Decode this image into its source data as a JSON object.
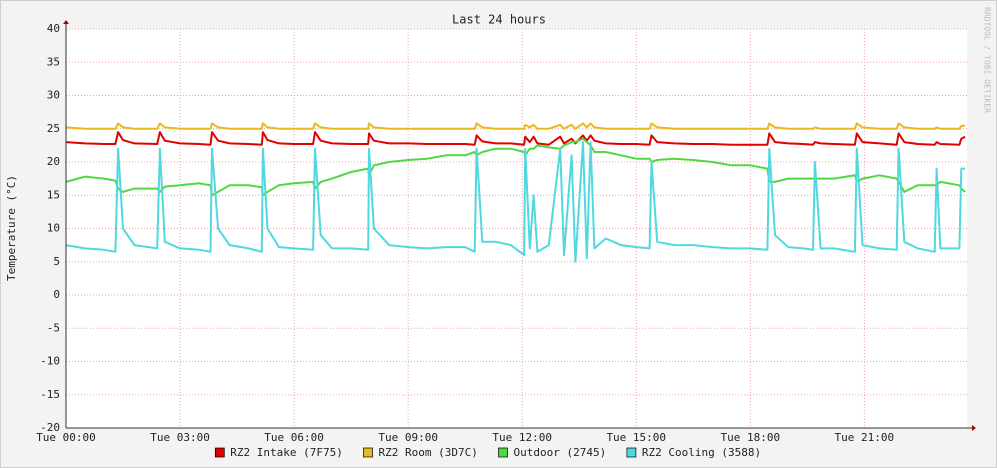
{
  "chart_data": {
    "type": "line",
    "title": "Last 24 hours",
    "y_label": "Temperature (°C)",
    "watermark": "RRDTOOL / TOBI OETIKER",
    "x": [
      0,
      0.5,
      1.0,
      1.3,
      1.37,
      1.5,
      1.8,
      2.4,
      2.47,
      2.6,
      3.0,
      3.5,
      3.8,
      3.84,
      4.0,
      4.3,
      4.8,
      5.15,
      5.18,
      5.3,
      5.6,
      6.0,
      6.5,
      6.55,
      6.7,
      7.0,
      7.5,
      7.95,
      7.97,
      8.1,
      8.5,
      9.0,
      9.5,
      10.0,
      10.5,
      10.75,
      10.8,
      10.95,
      11.3,
      11.7,
      12.05,
      12.08,
      12.2,
      12.3,
      12.4,
      12.7,
      13.0,
      13.1,
      13.3,
      13.4,
      13.6,
      13.7,
      13.8,
      13.9,
      14.2,
      14.6,
      15.0,
      15.35,
      15.4,
      15.55,
      16.0,
      16.5,
      17.0,
      17.5,
      18.0,
      18.45,
      18.5,
      18.65,
      19.0,
      19.4,
      19.65,
      19.7,
      19.85,
      20.2,
      20.75,
      20.8,
      20.95,
      21.4,
      21.85,
      21.9,
      22.05,
      22.4,
      22.85,
      22.9,
      23.0,
      23.5,
      23.55,
      23.65
    ],
    "series": [
      {
        "name": "RZ2 Intake (7F75)",
        "color": "#e00000",
        "values": [
          23,
          22.8,
          22.7,
          22.7,
          24.5,
          23.3,
          22.8,
          22.7,
          24.5,
          23.2,
          22.8,
          22.7,
          22.6,
          24.5,
          23.2,
          22.8,
          22.7,
          22.6,
          24.5,
          23.3,
          22.8,
          22.7,
          22.7,
          24.5,
          23.2,
          22.8,
          22.7,
          22.7,
          24.3,
          23.2,
          22.8,
          22.8,
          22.7,
          22.7,
          22.7,
          22.6,
          24,
          23.1,
          22.8,
          22.8,
          22.6,
          23.8,
          23,
          23.8,
          22.8,
          22.6,
          23.8,
          22.8,
          23.5,
          22.8,
          24,
          23.2,
          24,
          23.2,
          22.8,
          22.7,
          22.7,
          22.6,
          24,
          23,
          22.8,
          22.7,
          22.7,
          22.6,
          22.6,
          22.6,
          24.3,
          23,
          22.8,
          22.7,
          22.6,
          23,
          22.8,
          22.7,
          22.6,
          24.3,
          23,
          22.8,
          22.6,
          24.3,
          23,
          22.7,
          22.6,
          23,
          22.7,
          22.6,
          23.5,
          23.8
        ]
      },
      {
        "name": "RZ2 Room (3D7C)",
        "color": "#e8b820",
        "values": [
          25.2,
          25,
          25,
          25,
          25.8,
          25.2,
          25,
          25,
          25.8,
          25.2,
          25,
          25,
          25,
          25.8,
          25.2,
          25,
          25,
          25,
          25.8,
          25.2,
          25,
          25,
          25,
          25.8,
          25.2,
          25,
          25,
          25,
          25.8,
          25.2,
          25,
          25,
          25,
          25,
          25,
          25,
          25.8,
          25.2,
          25,
          25,
          25,
          25.6,
          25.2,
          25.6,
          25,
          25,
          25.6,
          25,
          25.6,
          25,
          25.8,
          25.2,
          25.8,
          25.2,
          25,
          25,
          25,
          25,
          25.8,
          25.2,
          25,
          25,
          25,
          25,
          25,
          25,
          25.8,
          25.2,
          25,
          25,
          25,
          25.2,
          25,
          25,
          25,
          25.8,
          25.2,
          25,
          25,
          25.8,
          25.2,
          25,
          25,
          25.2,
          25,
          25,
          25.4,
          25.5
        ]
      },
      {
        "name": "Outdoor (2745)",
        "color": "#50d840",
        "values": [
          17,
          17.8,
          17.5,
          17.2,
          16,
          15.5,
          16,
          16,
          15.5,
          16.3,
          16.5,
          16.8,
          16.5,
          15,
          15.5,
          16.5,
          16.5,
          16.2,
          15,
          15.5,
          16.5,
          16.8,
          17,
          16,
          17,
          17.5,
          18.5,
          19,
          18,
          19.5,
          20,
          20.3,
          20.5,
          21,
          21,
          21.5,
          21,
          21.5,
          22,
          22,
          21.5,
          21,
          22,
          22,
          22.5,
          22.2,
          22,
          22.5,
          23,
          23,
          23.5,
          23,
          22.5,
          21.5,
          21.5,
          21,
          20.5,
          20.5,
          20,
          20.3,
          20.5,
          20.3,
          20,
          19.5,
          19.5,
          19,
          17,
          17,
          17.5,
          17.5,
          17.5,
          17.5,
          17.5,
          17.5,
          18,
          17,
          17.5,
          18,
          17.5,
          17,
          15.5,
          16.5,
          16.5,
          16.5,
          17,
          16.5,
          16,
          15.5
        ]
      },
      {
        "name": "RZ2 Cooling (3588)",
        "color": "#50d8e0",
        "values": [
          7.5,
          7,
          6.8,
          6.5,
          22,
          10,
          7.5,
          7,
          22,
          8,
          7,
          6.8,
          6.5,
          22,
          10,
          7.5,
          7,
          6.5,
          22,
          10,
          7.2,
          7,
          6.8,
          22,
          9,
          7,
          7,
          6.8,
          22,
          10,
          7.5,
          7.2,
          7,
          7.2,
          7.2,
          6.5,
          22,
          8,
          8,
          7.5,
          6,
          22,
          7,
          15,
          6.5,
          7.5,
          22,
          6,
          21,
          5,
          23,
          5.5,
          23,
          7,
          8.5,
          7.5,
          7.2,
          7,
          20,
          8,
          7.5,
          7.5,
          7.2,
          7,
          7,
          6.8,
          22,
          9,
          7.2,
          7,
          6.8,
          20,
          7,
          7,
          6.5,
          22,
          7.5,
          7,
          6.8,
          22,
          8,
          7,
          6.5,
          19,
          7,
          7,
          19,
          19
        ]
      }
    ],
    "xlim": [
      0,
      23.7
    ],
    "xticks": [
      {
        "value": 0,
        "label": "Tue 00:00"
      },
      {
        "value": 3,
        "label": "Tue 03:00"
      },
      {
        "value": 6,
        "label": "Tue 06:00"
      },
      {
        "value": 9,
        "label": "Tue 09:00"
      },
      {
        "value": 12,
        "label": "Tue 12:00"
      },
      {
        "value": 15,
        "label": "Tue 15:00"
      },
      {
        "value": 18,
        "label": "Tue 18:00"
      },
      {
        "value": 21,
        "label": "Tue 21:00"
      }
    ],
    "ylim": [
      -20,
      40
    ],
    "yticks": [
      -20,
      -15,
      -10,
      -5,
      0,
      5,
      10,
      15,
      20,
      25,
      30,
      35,
      40
    ],
    "grid": true
  }
}
